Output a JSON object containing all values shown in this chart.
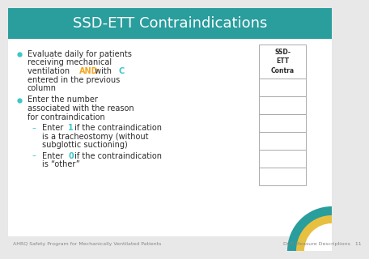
{
  "title": "SSD-ETT Contraindications",
  "title_bg_color": "#2a9d9d",
  "title_text_color": "#ffffff",
  "slide_bg_color": "#e8e8e8",
  "content_bg_color": "#ffffff",
  "bullet_color": "#3ec6c6",
  "highlight_and_color": "#f4a623",
  "highlight_c_color": "#3ec6c6",
  "highlight_num_color": "#3ec6c6",
  "text_color": "#2c2c2c",
  "dash_color": "#3ec6c6",
  "footer_text_left": "AHRQ Safety Program for Mechanically Ventilated Patients",
  "footer_text_right": "DCP Measure Descriptions   11",
  "footer_text_color": "#888888",
  "footer_gold_color": "#e8c040",
  "footer_teal_color": "#2a9d9d",
  "table_header": "SSD-\nETT\nContra",
  "table_header_color": "#2c2c2c",
  "table_border_color": "#aaaaaa",
  "num_table_rows": 6,
  "title_fontsize": 13,
  "body_fontsize": 7,
  "footer_fontsize": 4.5
}
